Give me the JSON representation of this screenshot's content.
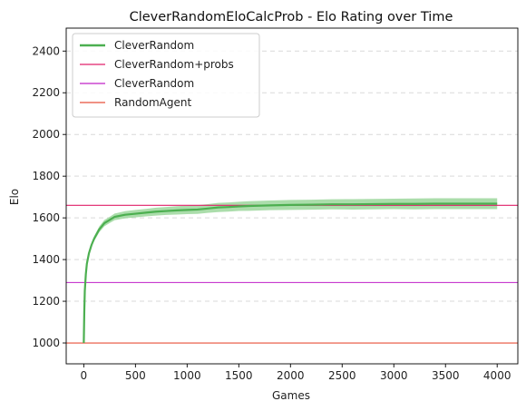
{
  "chart_data": {
    "type": "line",
    "title": "CleverRandomEloCalcProb - Elo Rating over Time",
    "xlabel": "Games",
    "ylabel": "Elo",
    "xlim": [
      -170,
      4200
    ],
    "ylim": [
      900,
      2510
    ],
    "xticks": [
      0,
      500,
      1000,
      1500,
      2000,
      2500,
      3000,
      3500,
      4000
    ],
    "yticks": [
      1000,
      1200,
      1400,
      1600,
      1800,
      2000,
      2200,
      2400
    ],
    "grid": {
      "y": true,
      "style": "dashed"
    },
    "legend_position": "top-left",
    "series": [
      {
        "name": "CleverRandom",
        "kind": "line",
        "color": "#4caf50",
        "band_color": "#8fd18f",
        "x": [
          0,
          5,
          10,
          20,
          30,
          50,
          75,
          100,
          150,
          200,
          250,
          300,
          400,
          500,
          600,
          700,
          800,
          900,
          1000,
          1100,
          1200,
          1300,
          1400,
          1500,
          1600,
          1800,
          2000,
          2200,
          2400,
          2600,
          2800,
          3000,
          3200,
          3400,
          3600,
          3800,
          4000
        ],
        "y": [
          1000,
          1150,
          1250,
          1330,
          1380,
          1430,
          1470,
          1500,
          1545,
          1575,
          1590,
          1605,
          1615,
          1620,
          1625,
          1630,
          1633,
          1636,
          1638,
          1640,
          1645,
          1650,
          1652,
          1655,
          1657,
          1660,
          1662,
          1663,
          1665,
          1665,
          1666,
          1667,
          1667,
          1668,
          1668,
          1668,
          1668
        ],
        "band_halfwidth": [
          0,
          2,
          3,
          5,
          6,
          8,
          10,
          12,
          14,
          15,
          15,
          16,
          17,
          18,
          18,
          19,
          19,
          20,
          20,
          21,
          21,
          22,
          22,
          22,
          23,
          23,
          24,
          24,
          24,
          25,
          25,
          25,
          26,
          26,
          26,
          26,
          26
        ]
      },
      {
        "name": "CleverRandom+probs",
        "kind": "hline",
        "color": "#e0206a",
        "y": 1660
      },
      {
        "name": "CleverRandom",
        "kind": "hline",
        "color": "#c020c8",
        "y": 1290
      },
      {
        "name": "RandomAgent",
        "kind": "hline",
        "color": "#e8503a",
        "y": 1000
      }
    ]
  }
}
